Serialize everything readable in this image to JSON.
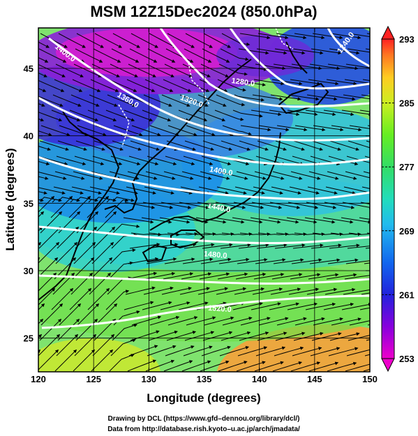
{
  "title": "MSM 12Z15Dec2024 (850.0hPa)",
  "x_axis": {
    "label": "Longitude (degrees)",
    "min": 120,
    "max": 150,
    "ticks": [
      "120",
      "125",
      "130",
      "135",
      "140",
      "145",
      "150"
    ],
    "tick_values": [
      120,
      125,
      130,
      135,
      140,
      145,
      150
    ]
  },
  "y_axis": {
    "label": "Latitude  (degrees)",
    "min": 22.5,
    "max": 48,
    "ticks": [
      "25",
      "30",
      "35",
      "40",
      "45"
    ],
    "tick_values": [
      25,
      30,
      35,
      40,
      45
    ]
  },
  "colorbar": {
    "min": 253,
    "max": 293,
    "ticks": [
      "253",
      "261",
      "269",
      "277",
      "285",
      "293"
    ],
    "tick_values": [
      253,
      261,
      269,
      277,
      285,
      293
    ],
    "colors": [
      "#ee00cc",
      "#8800dd",
      "#2222dd",
      "#1166ee",
      "#22ccdd",
      "#33ddaa",
      "#44dd44",
      "#99ee22",
      "#eeee22",
      "#ffaa22",
      "#ff3322"
    ]
  },
  "contour_labels": [
    {
      "text": "1400.0",
      "lon": 122.3,
      "lat": 46.0,
      "rot": 38
    },
    {
      "text": "1360.0",
      "lon": 128.0,
      "lat": 42.5,
      "rot": 30
    },
    {
      "text": "1320.0",
      "lon": 133.8,
      "lat": 42.4,
      "rot": 20
    },
    {
      "text": "1280.0",
      "lon": 138.5,
      "lat": 43.8,
      "rot": 8
    },
    {
      "text": "1240.0",
      "lon": 148.0,
      "lat": 46.8,
      "rot": -55
    },
    {
      "text": "1400.0",
      "lon": 136.5,
      "lat": 37.2,
      "rot": 10
    },
    {
      "text": "1440.0",
      "lon": 136.3,
      "lat": 34.5,
      "rot": 12
    },
    {
      "text": "1480.0",
      "lon": 136.0,
      "lat": 31.0,
      "rot": 5
    },
    {
      "text": "1520.0",
      "lon": 136.4,
      "lat": 27.0,
      "rot": 4
    }
  ],
  "credits": {
    "line1": "Drawing by DCL (https://www.gfd–dennou.org/library/dcl/)",
    "line2": "Data from http://database.rish.kyoto–u.ac.jp/arch/jmadata/"
  }
}
